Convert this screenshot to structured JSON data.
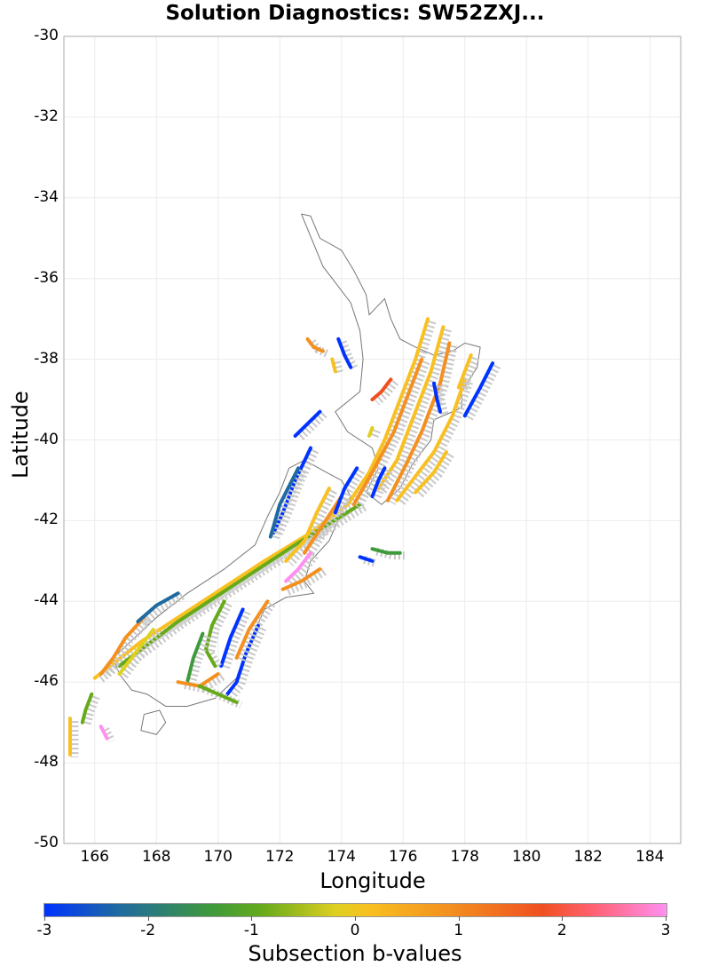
{
  "title": "Solution Diagnostics: SW52ZXJ...",
  "chart_data": {
    "type": "map",
    "title": "Solution Diagnostics: SW52ZXJ...",
    "xlabel": "Longitude",
    "ylabel": "Latitude",
    "xlim": [
      165,
      185
    ],
    "ylim": [
      -50,
      -30
    ],
    "x_ticks": [
      "166",
      "168",
      "170",
      "172",
      "174",
      "176",
      "178",
      "180",
      "182",
      "184"
    ],
    "y_ticks": [
      "-30",
      "-32",
      "-34",
      "-36",
      "-38",
      "-40",
      "-42",
      "-44",
      "-46",
      "-48",
      "-50"
    ],
    "grid": true,
    "colorbar": {
      "label": "Subsection b-values",
      "range": [
        -3,
        3
      ],
      "ticks": [
        "-3",
        "-2",
        "-1",
        "0",
        "1",
        "2",
        "3"
      ],
      "colors": [
        "#0033ff",
        "#1f6aa0",
        "#3f9a3a",
        "#66aa1a",
        "#e0d020",
        "#f8c020",
        "#f39020",
        "#f05020",
        "#ff6070",
        "#ff90f0"
      ]
    },
    "description": "Fault subsection traces over New Zealand colored by subsection b-value; grey outline is the NZ coastline."
  },
  "faults": [
    {
      "b": 0.5,
      "pts": [
        [
          176.8,
          -37.0
        ],
        [
          176.4,
          -38.0
        ],
        [
          175.9,
          -39.0
        ],
        [
          175.4,
          -40.0
        ],
        [
          174.9,
          -40.8
        ],
        [
          174.2,
          -41.6
        ],
        [
          173.0,
          -42.3
        ],
        [
          171.5,
          -43.0
        ],
        [
          169.5,
          -44.0
        ],
        [
          167.5,
          -45.0
        ],
        [
          166.0,
          -45.9
        ]
      ]
    },
    {
      "b": -0.7,
      "pts": [
        [
          174.6,
          -41.6
        ],
        [
          172.5,
          -42.6
        ],
        [
          170.5,
          -43.6
        ],
        [
          168.7,
          -44.5
        ],
        [
          166.8,
          -45.6
        ]
      ]
    },
    {
      "b": 0.3,
      "pts": [
        [
          177.3,
          -37.2
        ],
        [
          176.9,
          -38.3
        ],
        [
          176.3,
          -39.5
        ],
        [
          175.8,
          -40.5
        ],
        [
          175.2,
          -41.2
        ]
      ]
    },
    {
      "b": 0.9,
      "pts": [
        [
          177.5,
          -37.6
        ],
        [
          177.2,
          -38.6
        ],
        [
          176.6,
          -39.8
        ],
        [
          176.1,
          -40.6
        ],
        [
          175.5,
          -41.5
        ]
      ]
    },
    {
      "b": 0.2,
      "pts": [
        [
          178.0,
          -38.5
        ],
        [
          177.6,
          -39.4
        ],
        [
          177.0,
          -40.3
        ],
        [
          176.3,
          -41.0
        ],
        [
          175.8,
          -41.5
        ]
      ]
    },
    {
      "b": 1.2,
      "pts": [
        [
          176.6,
          -38.0
        ],
        [
          176.2,
          -38.8
        ],
        [
          175.7,
          -39.8
        ],
        [
          175.0,
          -40.8
        ],
        [
          174.4,
          -41.6
        ]
      ]
    },
    {
      "b": -3.0,
      "pts": [
        [
          178.9,
          -38.1
        ],
        [
          178.5,
          -38.7
        ],
        [
          178.0,
          -39.4
        ]
      ]
    },
    {
      "b": -3.0,
      "pts": [
        [
          173.0,
          -40.2
        ],
        [
          172.5,
          -41.0
        ],
        [
          172.1,
          -41.8
        ],
        [
          171.8,
          -42.3
        ]
      ]
    },
    {
      "b": -2.3,
      "pts": [
        [
          172.6,
          -40.7
        ],
        [
          172.0,
          -41.6
        ],
        [
          171.7,
          -42.4
        ]
      ]
    },
    {
      "b": 0.4,
      "pts": [
        [
          173.6,
          -41.2
        ],
        [
          173.2,
          -41.8
        ],
        [
          172.8,
          -42.5
        ],
        [
          172.2,
          -43.0
        ]
      ]
    },
    {
      "b": 1.0,
      "pts": [
        [
          174.0,
          -41.4
        ],
        [
          173.4,
          -42.1
        ],
        [
          172.8,
          -42.8
        ]
      ]
    },
    {
      "b": -3.0,
      "pts": [
        [
          174.5,
          -40.7
        ],
        [
          174.1,
          -41.2
        ],
        [
          173.8,
          -41.8
        ]
      ]
    },
    {
      "b": 2.8,
      "pts": [
        [
          173.0,
          -42.8
        ],
        [
          172.6,
          -43.2
        ],
        [
          172.2,
          -43.5
        ]
      ]
    },
    {
      "b": 0.8,
      "pts": [
        [
          173.3,
          -43.2
        ],
        [
          172.7,
          -43.5
        ],
        [
          172.1,
          -43.7
        ]
      ]
    },
    {
      "b": -3.0,
      "pts": [
        [
          170.8,
          -44.2
        ],
        [
          170.4,
          -44.9
        ],
        [
          170.1,
          -45.6
        ]
      ]
    },
    {
      "b": -2.9,
      "pts": [
        [
          171.3,
          -44.6
        ],
        [
          170.9,
          -45.3
        ],
        [
          170.6,
          -46.0
        ],
        [
          170.3,
          -46.3
        ]
      ]
    },
    {
      "b": -1.2,
      "pts": [
        [
          170.2,
          -44.0
        ],
        [
          169.8,
          -44.6
        ],
        [
          169.6,
          -45.2
        ],
        [
          169.9,
          -45.6
        ]
      ]
    },
    {
      "b": 1.1,
      "pts": [
        [
          171.6,
          -44.0
        ],
        [
          171.0,
          -44.7
        ],
        [
          170.6,
          -45.4
        ]
      ]
    },
    {
      "b": -2.0,
      "pts": [
        [
          169.5,
          -44.8
        ],
        [
          169.2,
          -45.4
        ],
        [
          169.0,
          -46.0
        ]
      ]
    },
    {
      "b": 1.0,
      "pts": [
        [
          170.0,
          -45.8
        ],
        [
          169.4,
          -46.1
        ],
        [
          168.7,
          -46.0
        ]
      ]
    },
    {
      "b": -1.2,
      "pts": [
        [
          169.4,
          -46.1
        ],
        [
          170.0,
          -46.3
        ],
        [
          170.6,
          -46.5
        ]
      ]
    },
    {
      "b": 0.7,
      "pts": [
        [
          167.6,
          -44.4
        ],
        [
          167.0,
          -44.9
        ],
        [
          166.6,
          -45.4
        ],
        [
          166.2,
          -45.8
        ]
      ]
    },
    {
      "b": -0.6,
      "pts": [
        [
          167.9,
          -44.7
        ],
        [
          167.3,
          -45.3
        ],
        [
          166.8,
          -45.8
        ]
      ]
    },
    {
      "b": -2.4,
      "pts": [
        [
          168.7,
          -43.8
        ],
        [
          168.0,
          -44.1
        ],
        [
          167.4,
          -44.5
        ]
      ]
    },
    {
      "b": -0.8,
      "pts": [
        [
          165.9,
          -46.3
        ],
        [
          165.7,
          -46.7
        ],
        [
          165.6,
          -47.0
        ]
      ]
    },
    {
      "b": 0.6,
      "pts": [
        [
          165.2,
          -46.9
        ],
        [
          165.2,
          -47.3
        ],
        [
          165.2,
          -47.8
        ]
      ]
    },
    {
      "b": 2.9,
      "pts": [
        [
          166.2,
          -47.1
        ],
        [
          166.4,
          -47.4
        ]
      ]
    },
    {
      "b": -3.0,
      "pts": [
        [
          174.6,
          -42.9
        ],
        [
          175.0,
          -43.0
        ]
      ]
    },
    {
      "b": -1.7,
      "pts": [
        [
          175.0,
          -42.7
        ],
        [
          175.5,
          -42.8
        ],
        [
          175.9,
          -42.8
        ]
      ]
    },
    {
      "b": 1.1,
      "pts": [
        [
          172.9,
          -37.5
        ],
        [
          173.1,
          -37.7
        ],
        [
          173.4,
          -37.8
        ]
      ]
    },
    {
      "b": -3.0,
      "pts": [
        [
          173.9,
          -37.5
        ],
        [
          174.1,
          -37.9
        ],
        [
          174.3,
          -38.2
        ]
      ]
    },
    {
      "b": 0.2,
      "pts": [
        [
          173.7,
          -38.0
        ],
        [
          173.8,
          -38.3
        ]
      ]
    },
    {
      "b": -3.0,
      "pts": [
        [
          173.3,
          -39.3
        ],
        [
          172.9,
          -39.6
        ],
        [
          172.5,
          -39.9
        ]
      ]
    },
    {
      "b": 1.4,
      "pts": [
        [
          175.6,
          -38.5
        ],
        [
          175.3,
          -38.8
        ],
        [
          175.0,
          -39.0
        ]
      ]
    },
    {
      "b": -0.6,
      "pts": [
        [
          175.0,
          -39.7
        ],
        [
          174.9,
          -39.9
        ]
      ]
    },
    {
      "b": 0.1,
      "pts": [
        [
          178.2,
          -37.9
        ],
        [
          178.0,
          -38.3
        ],
        [
          177.8,
          -38.7
        ]
      ]
    },
    {
      "b": -3.0,
      "pts": [
        [
          177.0,
          -38.6
        ],
        [
          177.1,
          -39.0
        ],
        [
          177.2,
          -39.3
        ]
      ]
    },
    {
      "b": -3.0,
      "pts": [
        [
          175.4,
          -40.7
        ],
        [
          175.2,
          -41.0
        ],
        [
          175.0,
          -41.4
        ]
      ]
    },
    {
      "b": 0.5,
      "pts": [
        [
          177.4,
          -40.3
        ],
        [
          177.0,
          -40.8
        ],
        [
          176.4,
          -41.3
        ]
      ]
    }
  ],
  "coastline": {
    "north": [
      [
        172.7,
        -34.4
      ],
      [
        173.0,
        -34.45
      ],
      [
        173.3,
        -35.0
      ],
      [
        174.0,
        -35.3
      ],
      [
        174.4,
        -35.8
      ],
      [
        174.8,
        -36.4
      ],
      [
        174.9,
        -36.9
      ],
      [
        175.4,
        -36.5
      ],
      [
        175.6,
        -37.0
      ],
      [
        175.9,
        -37.5
      ],
      [
        176.4,
        -37.7
      ],
      [
        177.0,
        -37.9
      ],
      [
        177.6,
        -37.8
      ],
      [
        178.0,
        -37.6
      ],
      [
        178.5,
        -37.7
      ],
      [
        178.4,
        -38.2
      ],
      [
        177.9,
        -38.8
      ],
      [
        177.9,
        -39.2
      ],
      [
        177.0,
        -39.5
      ],
      [
        176.9,
        -40.0
      ],
      [
        176.3,
        -40.6
      ],
      [
        175.9,
        -41.2
      ],
      [
        175.3,
        -41.6
      ],
      [
        174.8,
        -41.3
      ],
      [
        175.2,
        -40.7
      ],
      [
        175.0,
        -40.2
      ],
      [
        174.2,
        -39.8
      ],
      [
        173.8,
        -39.3
      ],
      [
        174.6,
        -38.8
      ],
      [
        174.7,
        -38.0
      ],
      [
        174.6,
        -37.3
      ],
      [
        174.3,
        -36.6
      ],
      [
        173.4,
        -35.7
      ],
      [
        172.7,
        -34.4
      ]
    ],
    "south": [
      [
        172.8,
        -40.5
      ],
      [
        173.5,
        -40.8
      ],
      [
        174.0,
        -41.0
      ],
      [
        174.3,
        -41.4
      ],
      [
        174.0,
        -41.8
      ],
      [
        173.6,
        -42.5
      ],
      [
        173.0,
        -43.0
      ],
      [
        172.8,
        -43.5
      ],
      [
        173.1,
        -43.8
      ],
      [
        172.2,
        -43.9
      ],
      [
        171.5,
        -44.2
      ],
      [
        171.1,
        -44.9
      ],
      [
        170.8,
        -45.6
      ],
      [
        170.6,
        -45.9
      ],
      [
        169.9,
        -46.4
      ],
      [
        169.0,
        -46.6
      ],
      [
        168.3,
        -46.6
      ],
      [
        167.7,
        -46.3
      ],
      [
        167.2,
        -46.2
      ],
      [
        166.8,
        -45.8
      ],
      [
        166.6,
        -45.4
      ],
      [
        167.3,
        -44.9
      ],
      [
        168.0,
        -44.4
      ],
      [
        169.0,
        -43.8
      ],
      [
        170.2,
        -43.2
      ],
      [
        171.2,
        -42.6
      ],
      [
        171.6,
        -41.9
      ],
      [
        172.0,
        -41.3
      ],
      [
        172.3,
        -40.7
      ],
      [
        172.8,
        -40.5
      ]
    ],
    "stewart": [
      [
        167.6,
        -46.8
      ],
      [
        168.1,
        -46.7
      ],
      [
        168.3,
        -47.0
      ],
      [
        168.0,
        -47.3
      ],
      [
        167.5,
        -47.2
      ],
      [
        167.6,
        -46.8
      ]
    ]
  }
}
